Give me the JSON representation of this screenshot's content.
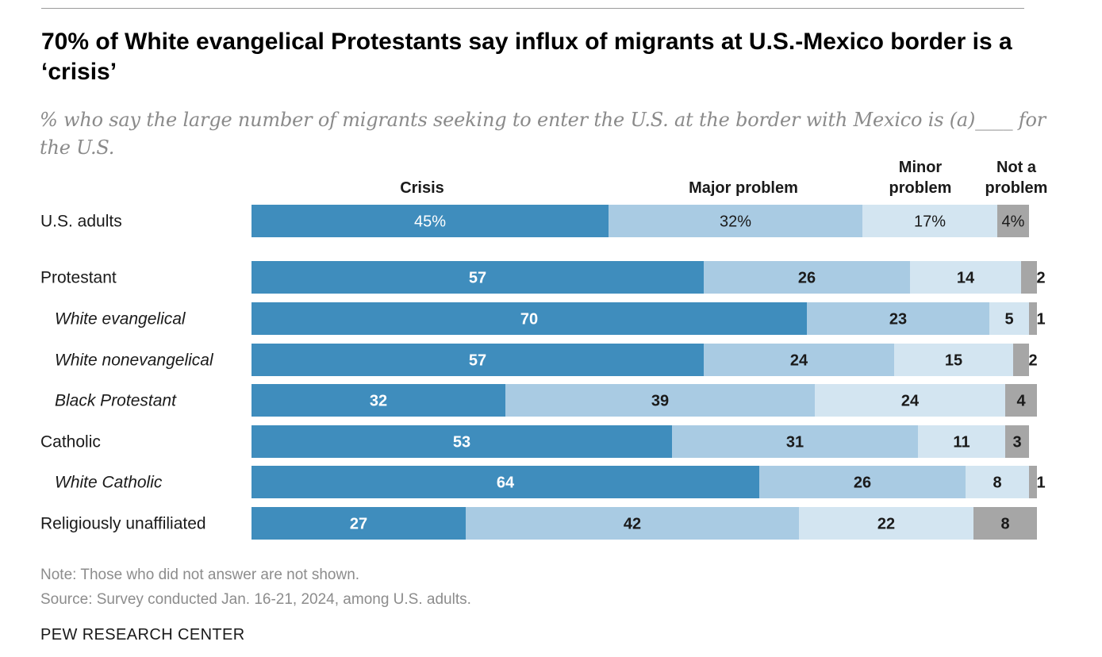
{
  "header": {
    "title": "70% of White evangelical Protestants say influx of migrants at U.S.-Mexico border is a ‘crisis’",
    "subtitle": "% who say the large number of migrants seeking to enter the U.S. at the border with Mexico is (a)____ for the U.S."
  },
  "footer": {
    "note": "Note: Those who did not answer are not shown.",
    "source": "Source: Survey conducted Jan. 16-21, 2024, among U.S. adults.",
    "brand": "PEW RESEARCH CENTER"
  },
  "chart_data": {
    "type": "bar",
    "orientation": "horizontal",
    "stacked": true,
    "xlim": [
      0,
      100
    ],
    "grid": false,
    "legend_placement": "top (column headers above each segment)",
    "series": [
      {
        "name": "Crisis",
        "header_lines": [
          "Crisis"
        ],
        "color": "#3f8dbd",
        "label_color": "#ffffff"
      },
      {
        "name": "Major problem",
        "header_lines": [
          "Major problem"
        ],
        "color": "#a9cbe3",
        "label_color": "#1a1a1a"
      },
      {
        "name": "Minor problem",
        "header_lines": [
          "Minor",
          "problem"
        ],
        "color": "#d3e5f1",
        "label_color": "#1a1a1a"
      },
      {
        "name": "Not a problem",
        "header_lines": [
          "Not a",
          "problem"
        ],
        "color": "#a6a6a6",
        "label_color": "#1a1a1a"
      }
    ],
    "rows": [
      {
        "label": "U.S. adults",
        "italic": false,
        "values": [
          45,
          32,
          17,
          4
        ],
        "value_labels": [
          "45%",
          "32%",
          "17%",
          "4%"
        ]
      },
      {
        "label": "Protestant",
        "italic": false,
        "values": [
          57,
          26,
          14,
          2
        ],
        "value_labels": [
          "57",
          "26",
          "14",
          "2"
        ]
      },
      {
        "label": "White evangelical",
        "italic": true,
        "values": [
          70,
          23,
          5,
          1
        ],
        "value_labels": [
          "70",
          "23",
          "5",
          "1"
        ]
      },
      {
        "label": "White nonevangelical",
        "italic": true,
        "values": [
          57,
          24,
          15,
          2
        ],
        "value_labels": [
          "57",
          "24",
          "15",
          "2"
        ]
      },
      {
        "label": "Black Protestant",
        "italic": true,
        "values": [
          32,
          39,
          24,
          4
        ],
        "value_labels": [
          "32",
          "39",
          "24",
          "4"
        ]
      },
      {
        "label": "Catholic",
        "italic": false,
        "values": [
          53,
          31,
          11,
          3
        ],
        "value_labels": [
          "53",
          "31",
          "11",
          "3"
        ]
      },
      {
        "label": "White Catholic",
        "italic": true,
        "values": [
          64,
          26,
          8,
          1
        ],
        "value_labels": [
          "64",
          "26",
          "8",
          "1"
        ]
      },
      {
        "label": "Religiously unaffiliated",
        "italic": false,
        "values": [
          27,
          42,
          22,
          8
        ],
        "value_labels": [
          "27",
          "42",
          "22",
          "8"
        ]
      }
    ]
  }
}
